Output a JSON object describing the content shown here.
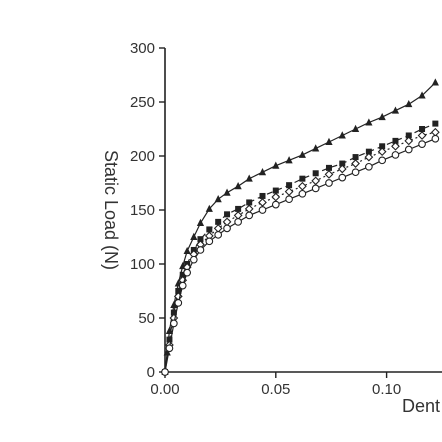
{
  "chart_data": {
    "type": "scatter",
    "xlabel": "Dent Dept",
    "ylabel": "Static Load (N)",
    "xlim": [
      0,
      0.125
    ],
    "ylim": [
      0,
      300
    ],
    "x_ticks": [
      0.0,
      0.05,
      0.1
    ],
    "x_tick_labels": [
      "0.00",
      "0.05",
      "0.10"
    ],
    "y_ticks": [
      0,
      50,
      100,
      150,
      200,
      250,
      300
    ],
    "y_tick_labels": [
      "0",
      "50",
      "100",
      "150",
      "200",
      "250",
      "300"
    ],
    "grid": false,
    "legend": "none",
    "series": [
      {
        "marker": "triangle-filled",
        "line": "solid",
        "color": "#222222",
        "x": [
          0.0,
          0.001,
          0.002,
          0.004,
          0.006,
          0.008,
          0.01,
          0.013,
          0.016,
          0.02,
          0.024,
          0.028,
          0.033,
          0.038,
          0.044,
          0.05,
          0.056,
          0.062,
          0.068,
          0.074,
          0.08,
          0.086,
          0.092,
          0.098,
          0.104,
          0.11,
          0.116,
          0.122
        ],
        "y": [
          0,
          18,
          38,
          62,
          82,
          98,
          112,
          125,
          138,
          151,
          160,
          166,
          172,
          179,
          185,
          191,
          196,
          201,
          207,
          213,
          219,
          225,
          231,
          236,
          242,
          248,
          256,
          268
        ]
      },
      {
        "marker": "square-filled",
        "line": "dashed",
        "color": "#222222",
        "x": [
          0.0,
          0.002,
          0.004,
          0.006,
          0.008,
          0.01,
          0.013,
          0.016,
          0.02,
          0.024,
          0.028,
          0.033,
          0.038,
          0.044,
          0.05,
          0.056,
          0.062,
          0.068,
          0.074,
          0.08,
          0.086,
          0.092,
          0.098,
          0.104,
          0.11,
          0.116,
          0.122
        ],
        "y": [
          0,
          30,
          55,
          75,
          90,
          100,
          113,
          123,
          132,
          139,
          146,
          151,
          157,
          163,
          168,
          173,
          179,
          184,
          189,
          193,
          199,
          204,
          209,
          214,
          219,
          225,
          230
        ]
      },
      {
        "marker": "diamond-open",
        "line": "dotted",
        "color": "#222222",
        "x": [
          0.0,
          0.002,
          0.004,
          0.006,
          0.008,
          0.01,
          0.013,
          0.016,
          0.02,
          0.024,
          0.028,
          0.033,
          0.038,
          0.044,
          0.05,
          0.056,
          0.062,
          0.068,
          0.074,
          0.08,
          0.086,
          0.092,
          0.098,
          0.104,
          0.11,
          0.116,
          0.122
        ],
        "y": [
          0,
          25,
          50,
          70,
          85,
          97,
          109,
          118,
          126,
          133,
          139,
          145,
          151,
          157,
          162,
          167,
          172,
          177,
          183,
          188,
          193,
          199,
          204,
          209,
          214,
          219,
          222
        ]
      },
      {
        "marker": "circle-open",
        "line": "solid",
        "color": "#222222",
        "x": [
          0.0,
          0.002,
          0.004,
          0.006,
          0.008,
          0.01,
          0.013,
          0.016,
          0.02,
          0.024,
          0.028,
          0.033,
          0.038,
          0.044,
          0.05,
          0.056,
          0.062,
          0.068,
          0.074,
          0.08,
          0.086,
          0.092,
          0.098,
          0.104,
          0.11,
          0.116,
          0.122
        ],
        "y": [
          0,
          22,
          45,
          64,
          80,
          92,
          104,
          113,
          121,
          127,
          133,
          139,
          145,
          150,
          155,
          160,
          165,
          170,
          175,
          180,
          185,
          190,
          196,
          201,
          206,
          211,
          216
        ]
      }
    ]
  }
}
